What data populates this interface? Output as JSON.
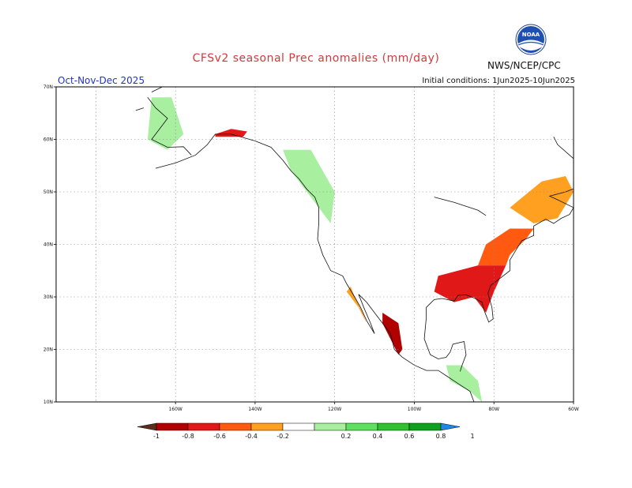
{
  "title": "CFSv2 seasonal Prec anomalies (mm/day)",
  "season": "Oct-Nov-Dec 2025",
  "initial_conditions": "Initial conditions: 1Jun2025-10Jun2025",
  "agency": "NWS/NCEP/CPC",
  "logo_text": "NOAA",
  "lat_labels": [
    "70N",
    "60N",
    "50N",
    "40N",
    "30N",
    "20N",
    "10N"
  ],
  "lon_labels": [
    "160W",
    "140W",
    "120W",
    "100W",
    "80W",
    "60W"
  ],
  "colorbar": {
    "labels": [
      "-1",
      "-0.8",
      "-0.6",
      "-0.4",
      "-0.2",
      "0.2",
      "0.4",
      "0.6",
      "0.8",
      "1"
    ],
    "colors": [
      "#5a2e1a",
      "#b00000",
      "#e01818",
      "#ff5a10",
      "#ffa020",
      "#ffffff",
      "#a8f0a0",
      "#60e060",
      "#30c030",
      "#10a020",
      "#1e88e8"
    ]
  },
  "map_data": {
    "projection": "lat-lon",
    "lon_range": [
      -190,
      -60
    ],
    "lat_range": [
      10,
      70
    ],
    "variable": "Precipitation anomaly (mm/day)",
    "anomaly_regions": [
      {
        "region": "Southern Alaska coast",
        "sign": "dry",
        "level": "-0.6"
      },
      {
        "region": "Western Alaska",
        "sign": "wet",
        "level": "0.2"
      },
      {
        "region": "British Columbia / Pacific Northwest",
        "sign": "wet",
        "level": "0.2"
      },
      {
        "region": "US Southeast / Gulf Coast",
        "sign": "dry",
        "level": "-0.6"
      },
      {
        "region": "US Mid-Atlantic / Northeast",
        "sign": "dry",
        "level": "-0.4"
      },
      {
        "region": "Western Mexico",
        "sign": "dry",
        "level": "-0.8"
      },
      {
        "region": "Eastern Canada / Maritimes",
        "sign": "dry",
        "level": "-0.2"
      },
      {
        "region": "Baja California",
        "sign": "dry",
        "level": "-0.2"
      },
      {
        "region": "Central America",
        "sign": "wet",
        "level": "0.2"
      }
    ]
  }
}
